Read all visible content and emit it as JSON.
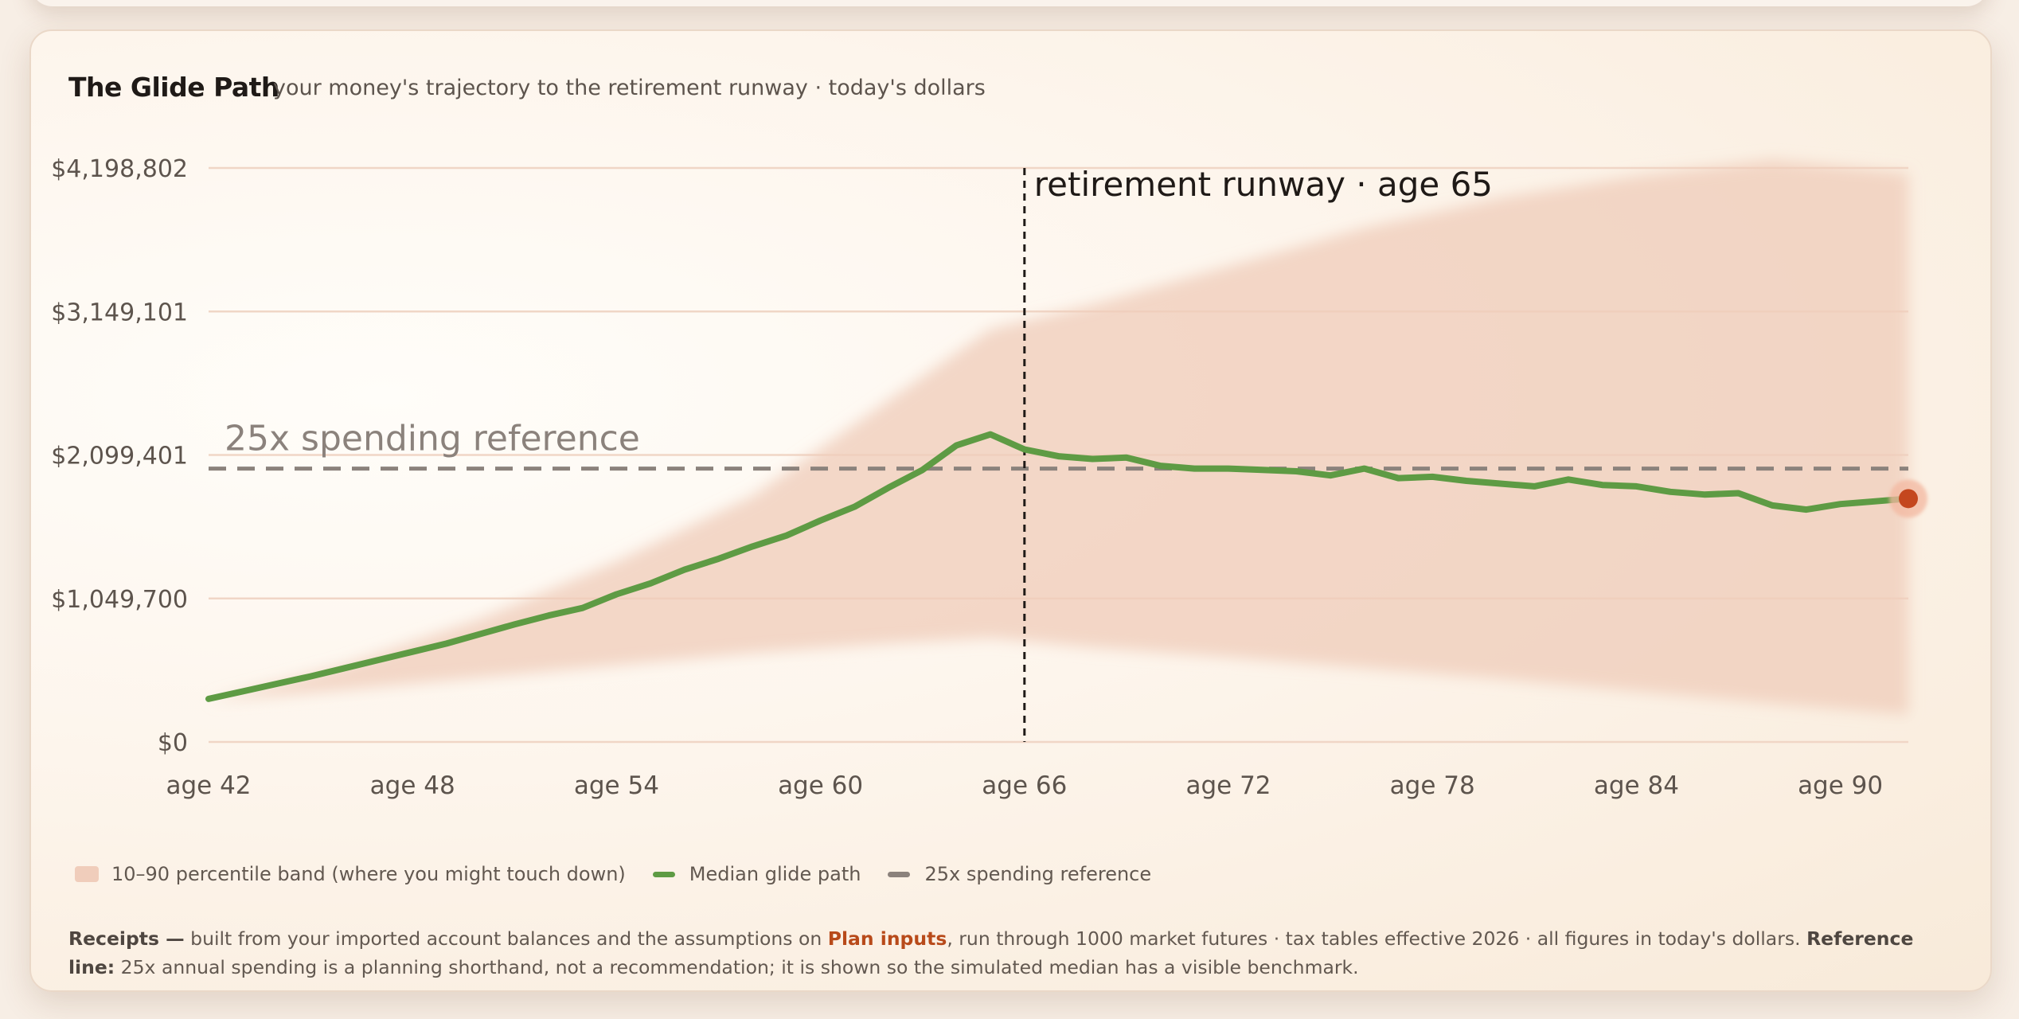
{
  "header": {
    "title": "The Glide Path",
    "subtitle": "your money's trajectory to the retirement runway · today's dollars"
  },
  "chart_data": {
    "type": "line",
    "title": "The Glide Path",
    "xlabel": "",
    "ylabel": "",
    "xlim": [
      42,
      92
    ],
    "ylim": [
      0,
      4198802
    ],
    "y_ticks": [
      0,
      1049700,
      2099401,
      3149101,
      4198802
    ],
    "y_tick_labels": [
      "$0",
      "$1,049,700",
      "$2,099,401",
      "$3,149,101",
      "$4,198,802"
    ],
    "x_ticks": [
      42,
      48,
      54,
      60,
      66,
      72,
      78,
      84,
      90
    ],
    "x_tick_labels": [
      "age 42",
      "age 48",
      "age 54",
      "age 60",
      "age 66",
      "age 72",
      "age 78",
      "age 84",
      "age 90"
    ],
    "grid": true,
    "legend_position": "bottom-left",
    "series": [
      {
        "name": "Median glide path",
        "color": "#5e9b44",
        "x": [
          42,
          43,
          44,
          45,
          46,
          47,
          48,
          49,
          50,
          51,
          52,
          53,
          54,
          55,
          56,
          57,
          58,
          59,
          60,
          61,
          62,
          63,
          64,
          65,
          66,
          67,
          68,
          69,
          70,
          71,
          72,
          73,
          74,
          75,
          76,
          77,
          78,
          79,
          80,
          81,
          82,
          83,
          84,
          85,
          86,
          87,
          88,
          89,
          90,
          91,
          92
        ],
        "values": [
          315000,
          370000,
          425000,
          480000,
          540000,
          600000,
          660000,
          720000,
          790000,
          860000,
          925000,
          980000,
          1080000,
          1160000,
          1260000,
          1340000,
          1430000,
          1510000,
          1620000,
          1720000,
          1860000,
          1990000,
          2170000,
          2250000,
          2140000,
          2090000,
          2070000,
          2080000,
          2020000,
          2000000,
          2000000,
          1990000,
          1980000,
          1950000,
          2000000,
          1930000,
          1940000,
          1910000,
          1890000,
          1870000,
          1920000,
          1880000,
          1870000,
          1830000,
          1810000,
          1820000,
          1730000,
          1700000,
          1740000,
          1760000,
          1780000
        ]
      },
      {
        "name": "10–90 percentile band (where you might touch down)",
        "color": "#f0cdbb",
        "x": [
          42,
          46,
          50,
          54,
          58,
          62,
          65,
          68,
          72,
          76,
          80,
          84,
          88,
          92
        ],
        "lower": [
          300000,
          380000,
          470000,
          560000,
          650000,
          720000,
          760000,
          690000,
          620000,
          540000,
          460000,
          370000,
          280000,
          200000
        ],
        "upper": [
          300000,
          560000,
          900000,
          1320000,
          1800000,
          2500000,
          3020000,
          3200000,
          3480000,
          3760000,
          3980000,
          4140000,
          4260000,
          4160000
        ]
      },
      {
        "name": "25x spending reference",
        "color": "#8b827c",
        "value": 2000000
      }
    ],
    "annotations": [
      {
        "x": 66,
        "label": "retirement runway · age 65"
      },
      {
        "label": "25x spending reference"
      }
    ]
  },
  "legend": {
    "band_label": "10–90 percentile band (where you might touch down)",
    "median_label": "Median glide path",
    "reference_label": "25x spending reference",
    "band_color": "#f0cdbb",
    "median_color": "#5e9b44",
    "reference_color": "#8b827c"
  },
  "receipts": {
    "lead": "Receipts —",
    "text_1": " built from your imported account balances and the assumptions on ",
    "link": "Plan inputs",
    "text_2": ", run through 1000 market futures · tax tables effective 2026 · all figures in today's dollars. ",
    "ref_lead": "Reference line:",
    "text_3": " 25x annual spending is a planning shorthand, not a recommendation; it is shown so the simulated median has a visible benchmark."
  }
}
